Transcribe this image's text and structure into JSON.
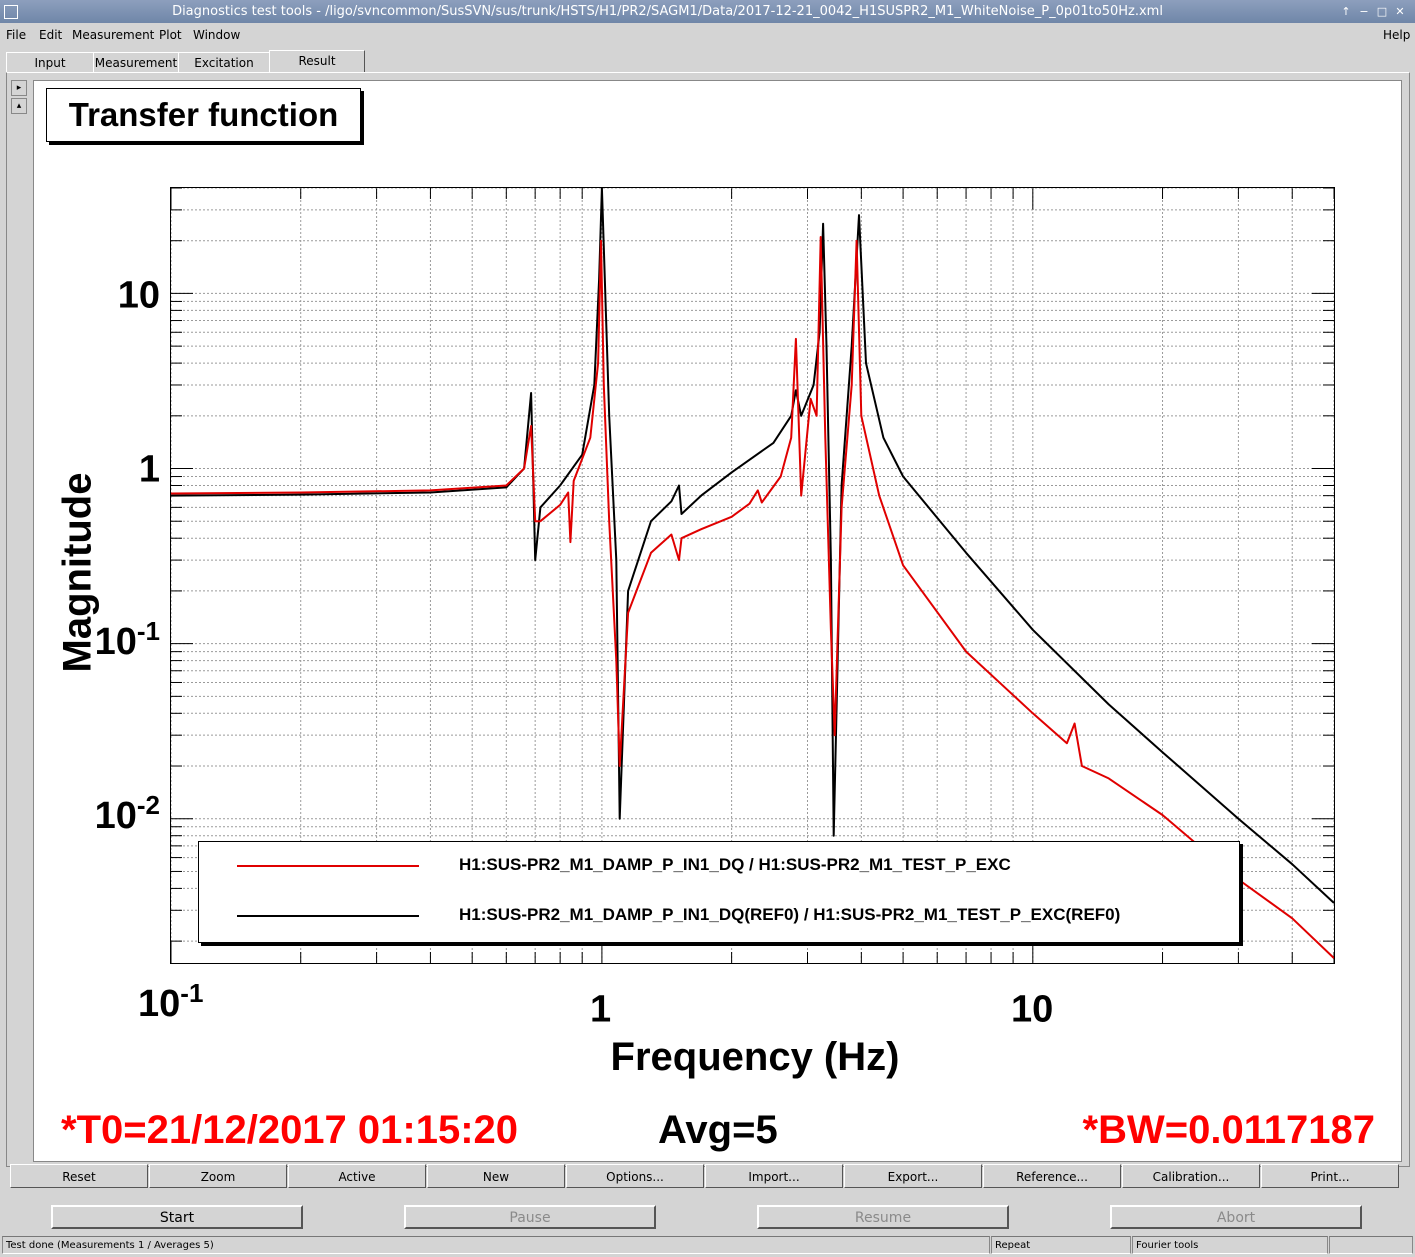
{
  "window": {
    "title": "Diagnostics test tools - /ligo/svncommon/SusSVN/sus/trunk/HSTS/H1/PR2/SAGM1/Data/2017-12-21_0042_H1SUSPR2_M1_WhiteNoise_P_0p01to50Hz.xml",
    "controls": [
      "↑",
      "−",
      "□",
      "✕"
    ]
  },
  "menu": {
    "file": "File",
    "edit": "Edit",
    "measurement": "Measurement",
    "plot": "Plot",
    "window": "Window",
    "help": "Help"
  },
  "tabs": [
    "Input",
    "Measurement",
    "Excitation",
    "Result"
  ],
  "active_tab": "Result",
  "side_buttons": [
    "▸",
    "▴"
  ],
  "plot": {
    "title": "Transfer function",
    "ylabel": "Magnitude",
    "xlabel": "Frequency (Hz)",
    "y_ticks": [
      {
        "base": "10",
        "exp": ""
      },
      {
        "base": "1",
        "exp": ""
      },
      {
        "base": "10",
        "exp": "-1"
      },
      {
        "base": "10",
        "exp": "-2"
      }
    ],
    "x_ticks": [
      {
        "base": "10",
        "exp": "-1"
      },
      {
        "base": "1",
        "exp": ""
      },
      {
        "base": "10",
        "exp": ""
      }
    ],
    "legend": [
      {
        "label": "H1:SUS-PR2_M1_DAMP_P_IN1_DQ / H1:SUS-PR2_M1_TEST_P_EXC",
        "color": "#e00000"
      },
      {
        "label": "H1:SUS-PR2_M1_DAMP_P_IN1_DQ(REF0) / H1:SUS-PR2_M1_TEST_P_EXC(REF0)",
        "color": "#000000"
      }
    ]
  },
  "chart_data": {
    "type": "line",
    "title": "Transfer function",
    "xlabel": "Frequency (Hz)",
    "ylabel": "Magnitude",
    "xscale": "log",
    "yscale": "log",
    "xlim": [
      0.1,
      50
    ],
    "ylim": [
      0.0015,
      40
    ],
    "grid": true,
    "legend_position": "bottom",
    "series": [
      {
        "name": "H1:SUS-PR2_M1_DAMP_P_IN1_DQ / H1:SUS-PR2_M1_TEST_P_EXC",
        "color": "#e00000",
        "x": [
          0.1,
          0.2,
          0.4,
          0.6,
          0.66,
          0.685,
          0.7,
          0.72,
          0.8,
          0.835,
          0.845,
          0.86,
          0.94,
          0.98,
          0.995,
          1.01,
          1.04,
          1.08,
          1.1,
          1.15,
          1.3,
          1.45,
          1.51,
          1.53,
          1.7,
          2.0,
          2.2,
          2.3,
          2.35,
          2.6,
          2.75,
          2.82,
          2.9,
          3.05,
          3.15,
          3.22,
          3.3,
          3.4,
          3.47,
          3.6,
          3.8,
          3.9,
          4.0,
          4.4,
          5.0,
          7.0,
          10.0,
          12.0,
          12.5,
          13.0,
          15.0,
          20.0,
          30.0,
          40.0,
          50.0
        ],
        "y": [
          0.72,
          0.73,
          0.75,
          0.8,
          1.0,
          1.75,
          0.5,
          0.5,
          0.62,
          0.73,
          0.38,
          0.85,
          1.5,
          4.0,
          20.0,
          3.0,
          0.5,
          0.08,
          0.02,
          0.15,
          0.33,
          0.42,
          0.3,
          0.4,
          0.45,
          0.53,
          0.63,
          0.75,
          0.64,
          0.9,
          1.5,
          5.5,
          0.7,
          2.5,
          2.0,
          21.0,
          1.5,
          0.12,
          0.03,
          0.6,
          3.0,
          20.0,
          2.0,
          0.7,
          0.28,
          0.09,
          0.04,
          0.027,
          0.035,
          0.02,
          0.017,
          0.0105,
          0.0045,
          0.0027,
          0.0016
        ]
      },
      {
        "name": "H1:SUS-PR2_M1_DAMP_P_IN1_DQ(REF0) / H1:SUS-PR2_M1_TEST_P_EXC(REF0)",
        "color": "#000000",
        "x": [
          0.1,
          0.2,
          0.4,
          0.6,
          0.66,
          0.685,
          0.7,
          0.72,
          0.8,
          0.9,
          0.96,
          0.985,
          1.0,
          1.04,
          1.08,
          1.1,
          1.15,
          1.3,
          1.45,
          1.51,
          1.53,
          1.7,
          2.0,
          2.5,
          2.75,
          2.82,
          2.9,
          3.1,
          3.2,
          3.26,
          3.32,
          3.4,
          3.45,
          3.6,
          3.8,
          3.95,
          4.1,
          4.5,
          5.0,
          7.0,
          10.0,
          15.0,
          20.0,
          30.0,
          40.0,
          50.0
        ],
        "y": [
          0.7,
          0.71,
          0.73,
          0.78,
          1.0,
          2.7,
          0.3,
          0.6,
          0.8,
          1.2,
          3.0,
          12.0,
          40.0,
          2.0,
          0.3,
          0.01,
          0.2,
          0.5,
          0.65,
          0.8,
          0.55,
          0.7,
          0.95,
          1.4,
          2.0,
          2.8,
          2.0,
          3.0,
          6.0,
          25.0,
          5.0,
          0.3,
          0.008,
          0.8,
          5.0,
          28.0,
          4.0,
          1.5,
          0.9,
          0.33,
          0.12,
          0.045,
          0.024,
          0.01,
          0.0055,
          0.0033
        ]
      }
    ]
  },
  "status": {
    "t0": "*T0=21/12/2017 01:15:20",
    "avg": "Avg=5",
    "bw": "*BW=0.0117187",
    "t0_color": "#ff0000",
    "bw_color": "#ff0000"
  },
  "toolbar": [
    "Reset",
    "Zoom",
    "Active",
    "New",
    "Options...",
    "Import...",
    "Export...",
    "Reference...",
    "Calibration...",
    "Print..."
  ],
  "controls": {
    "start": "Start",
    "pause": "Pause",
    "resume": "Resume",
    "abort": "Abort"
  },
  "statusbar": {
    "message": "Test done (Measurements 1 / Averages 5)",
    "mode": "Repeat",
    "tool": "Fourier tools"
  }
}
